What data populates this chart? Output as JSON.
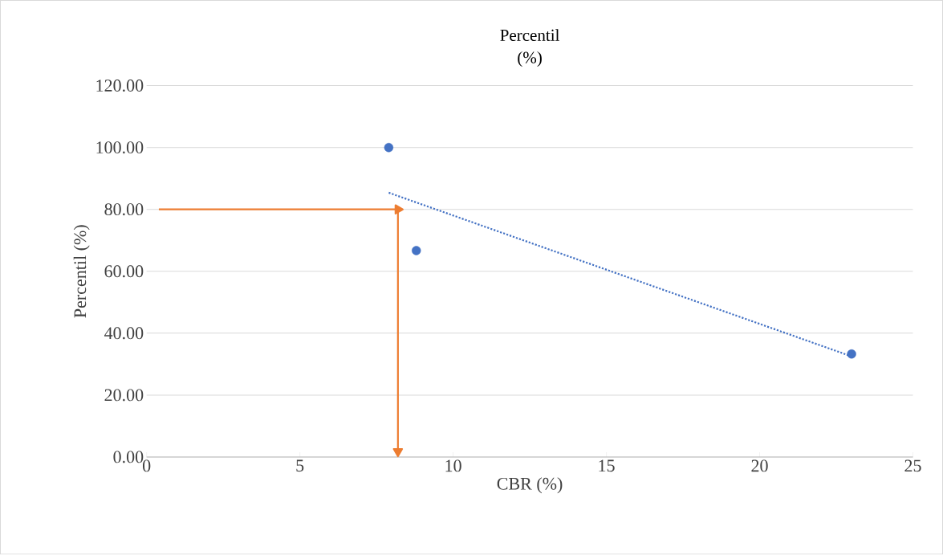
{
  "chart_data": {
    "type": "scatter",
    "title": "Percentil",
    "subtitle": "(%)",
    "xlabel": "CBR (%)",
    "ylabel": "Percentil (%)",
    "xlim": [
      0,
      25
    ],
    "xticks": [
      0,
      5,
      10,
      15,
      20,
      25
    ],
    "ylim": [
      0,
      120
    ],
    "yticks": [
      {
        "value": 0,
        "label": "0.00"
      },
      {
        "value": 20,
        "label": "20.00"
      },
      {
        "value": 40,
        "label": "40.00"
      },
      {
        "value": 60,
        "label": "60.00"
      },
      {
        "value": 80,
        "label": "80.00"
      },
      {
        "value": 100,
        "label": "100.00"
      },
      {
        "value": 120,
        "label": "120.00"
      }
    ],
    "grid": "y",
    "series": [
      {
        "color": "#4472c4",
        "marker": "circle",
        "x": [
          7.9,
          8.8,
          23
        ],
        "values": [
          100,
          66.7,
          33.3
        ]
      },
      {
        "type": "line",
        "color": "#4472c4",
        "line_style": "dotted",
        "marker": "none",
        "x": [
          7.9,
          23
        ],
        "values": [
          85.4,
          32.5
        ]
      },
      {
        "type": "line",
        "color": "#ed7d31",
        "line_style": "solid",
        "marker": "triangle",
        "x": [
          0.4,
          8.2
        ],
        "values": [
          80,
          80
        ]
      },
      {
        "type": "line",
        "color": "#ed7d31",
        "line_style": "solid",
        "marker": "triangle",
        "x": [
          8.2,
          8.2
        ],
        "values": [
          80,
          1.8
        ]
      }
    ]
  }
}
